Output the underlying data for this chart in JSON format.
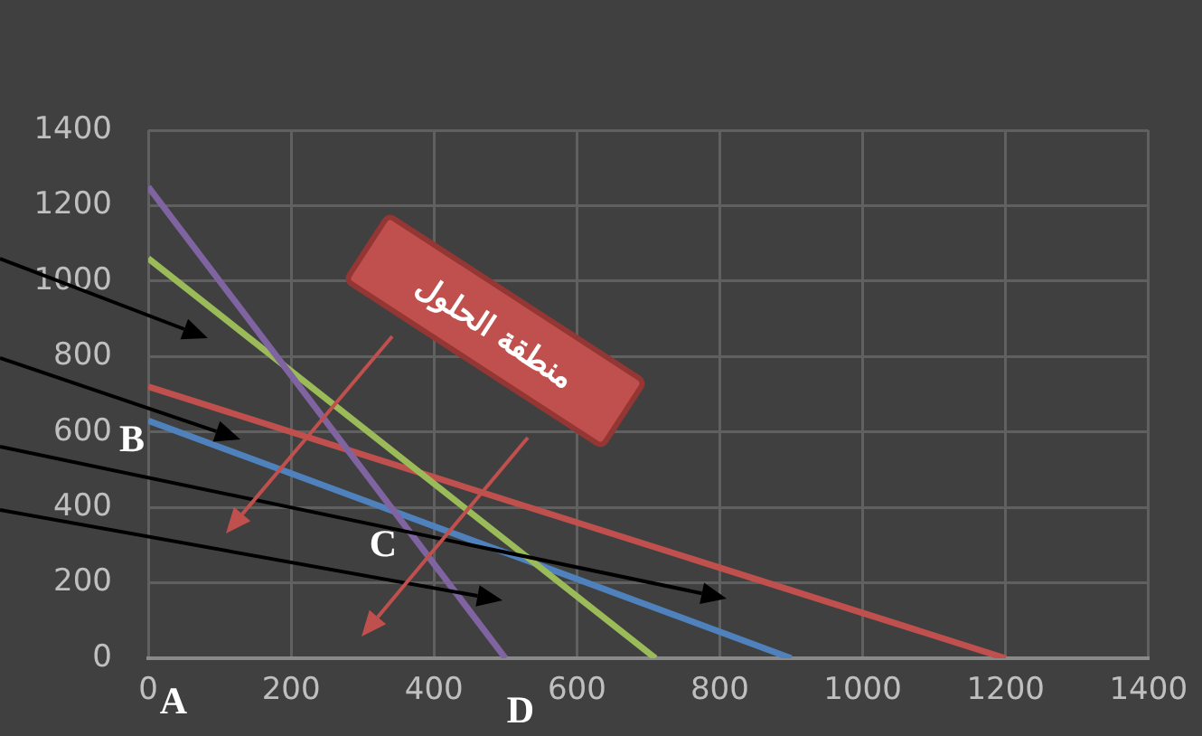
{
  "chart_data": {
    "type": "line",
    "series": [
      {
        "color": "#8064a2",
        "x": [
          0,
          500
        ],
        "values": [
          1250,
          0
        ]
      },
      {
        "color": "#9bbb59",
        "x": [
          0,
          710
        ],
        "values": [
          1060,
          0
        ]
      },
      {
        "color": "#c0504d",
        "x": [
          0,
          1200
        ],
        "values": [
          720,
          0
        ]
      },
      {
        "color": "#4f81bd",
        "x": [
          0,
          900
        ],
        "values": [
          630,
          0
        ]
      }
    ],
    "xlim": [
      0,
      1400
    ],
    "xticks": [
      0,
      200,
      400,
      600,
      800,
      1000,
      1200,
      1400
    ],
    "ylim": [
      0,
      1400
    ],
    "yticks": [
      0,
      200,
      400,
      600,
      800,
      1000,
      1200,
      1400
    ],
    "grid": true,
    "legend": false,
    "marker": "none",
    "line_style": "solid",
    "annotations": [
      "منطقة الحلول",
      "A",
      "B",
      "C",
      "D"
    ]
  }
}
